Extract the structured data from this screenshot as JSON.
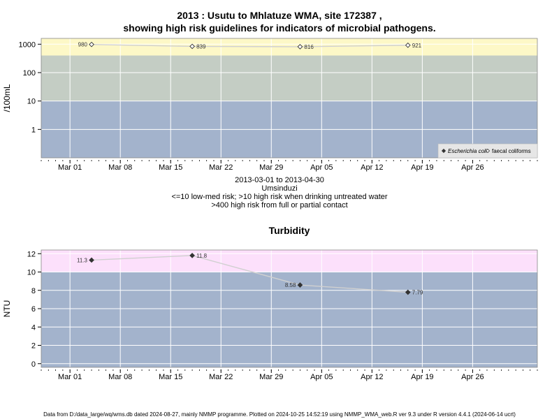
{
  "header": {
    "title_line1": "2013 : Usutu to Mhlatuze WMA, site 172387 ,",
    "title_line2": "showing high risk guidelines for indicators of microbial pathogens."
  },
  "subtitle": {
    "date_range": "2013-03-01 to 2013-04-30",
    "river": "Umsinduzi",
    "risk_note1": "<=10 low-med risk; >10 high risk when drinking untreated water",
    "risk_note2": ">400 high risk from full or partial contact"
  },
  "footer": {
    "text": "Data from D:/data_large/wq/wms.db dated 2024-08-27, mainly NMMP programme. Plotted on 2024-10-25 14:52:19 using NMMP_WMA_web.R ver 9.3 under R version 4.4.1 (2024-06-14 ucrt)"
  },
  "colors": {
    "band_low": "#a3b3cc",
    "band_mid": "#c4cdc4",
    "band_high": "#fdf8c7",
    "band_turb_high": "#fce0fb",
    "grid": "#ffffff",
    "line": "#d0d0d0",
    "point": "#333333"
  },
  "chart_data": [
    {
      "type": "line",
      "title": "",
      "ylabel": "/100mL",
      "yscale": "log",
      "ylim": [
        0.1,
        1600
      ],
      "yticks": [
        1,
        10,
        100,
        1000
      ],
      "ytick_labels": [
        "1",
        "10",
        "100",
        "1000"
      ],
      "x_axis": "date",
      "xlim": [
        "2013-02-25",
        "2013-05-05"
      ],
      "xticks": [
        "2013-03-01",
        "2013-03-08",
        "2013-03-15",
        "2013-03-22",
        "2013-03-29",
        "2013-04-05",
        "2013-04-12",
        "2013-04-19",
        "2013-04-26"
      ],
      "xtick_labels": [
        "Mar 01",
        "Mar 08",
        "Mar 15",
        "Mar 22",
        "Mar 29",
        "Apr 05",
        "Apr 12",
        "Apr 19",
        "Apr 26"
      ],
      "bands": [
        {
          "from": 0.1,
          "to": 10,
          "color": "#a3b3cc"
        },
        {
          "from": 10,
          "to": 400,
          "color": "#c4cdc4"
        },
        {
          "from": 400,
          "to": 1600,
          "color": "#fdf8c7"
        }
      ],
      "grid": true,
      "legend_position": "bottom-right",
      "series": [
        {
          "name": "Escherichia coli",
          "marker": "filled-diamond",
          "x": [],
          "y": []
        },
        {
          "name": "faecal coliforms",
          "marker": "open-diamond",
          "x": [
            "2013-03-04",
            "2013-03-18",
            "2013-04-02",
            "2013-04-17"
          ],
          "y": [
            980,
            839,
            816,
            921
          ],
          "labels": [
            "980",
            "839",
            "816",
            "921"
          ]
        }
      ]
    },
    {
      "type": "line",
      "title": "Turbidity",
      "ylabel": "NTU",
      "yscale": "linear",
      "ylim": [
        -0.4,
        12.4
      ],
      "yticks": [
        0,
        2,
        4,
        6,
        8,
        10,
        12
      ],
      "ytick_labels": [
        "0",
        "2",
        "4",
        "6",
        "8",
        "10",
        "12"
      ],
      "x_axis": "date",
      "xlim": [
        "2013-02-25",
        "2013-05-05"
      ],
      "xticks": [
        "2013-03-01",
        "2013-03-08",
        "2013-03-15",
        "2013-03-22",
        "2013-03-29",
        "2013-04-05",
        "2013-04-12",
        "2013-04-19",
        "2013-04-26"
      ],
      "xtick_labels": [
        "Mar 01",
        "Mar 08",
        "Mar 15",
        "Mar 22",
        "Mar 29",
        "Apr 05",
        "Apr 12",
        "Apr 19",
        "Apr 26"
      ],
      "bands": [
        {
          "from": -0.4,
          "to": 10,
          "color": "#a3b3cc"
        },
        {
          "from": 10,
          "to": 12.4,
          "color": "#fce0fb"
        }
      ],
      "grid": true,
      "series": [
        {
          "name": "",
          "marker": "filled-diamond",
          "x": [
            "2013-03-04",
            "2013-03-18",
            "2013-04-02",
            "2013-04-17"
          ],
          "y": [
            11.3,
            11.8,
            8.58,
            7.79
          ],
          "labels": [
            "11.3",
            "11.8",
            "8.58",
            "7.79"
          ]
        }
      ]
    }
  ]
}
